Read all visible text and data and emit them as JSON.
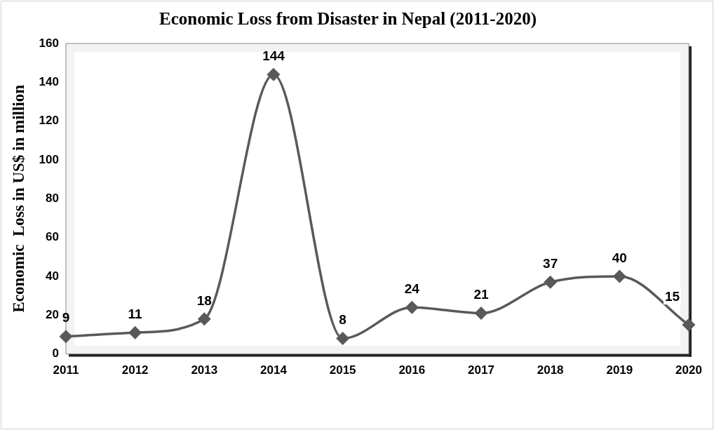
{
  "chart_data": {
    "type": "line",
    "title": "Economic Loss from Disaster in Nepal (2011-2020)",
    "ylabel": "Economic  Loss in US$ in million",
    "categories": [
      "2011",
      "2012",
      "2013",
      "2014",
      "2015",
      "2016",
      "2017",
      "2018",
      "2019",
      "2020"
    ],
    "series": [
      {
        "color": "#595959",
        "values": [
          9,
          11,
          18,
          144,
          8,
          24,
          21,
          37,
          40,
          15
        ]
      }
    ],
    "ylim": [
      0,
      160
    ],
    "yticks": [
      0,
      20,
      40,
      60,
      80,
      100,
      120,
      140,
      160
    ],
    "grid": false,
    "legend": false,
    "marker": "diamond",
    "line_style": "solid",
    "data_labels": true
  }
}
